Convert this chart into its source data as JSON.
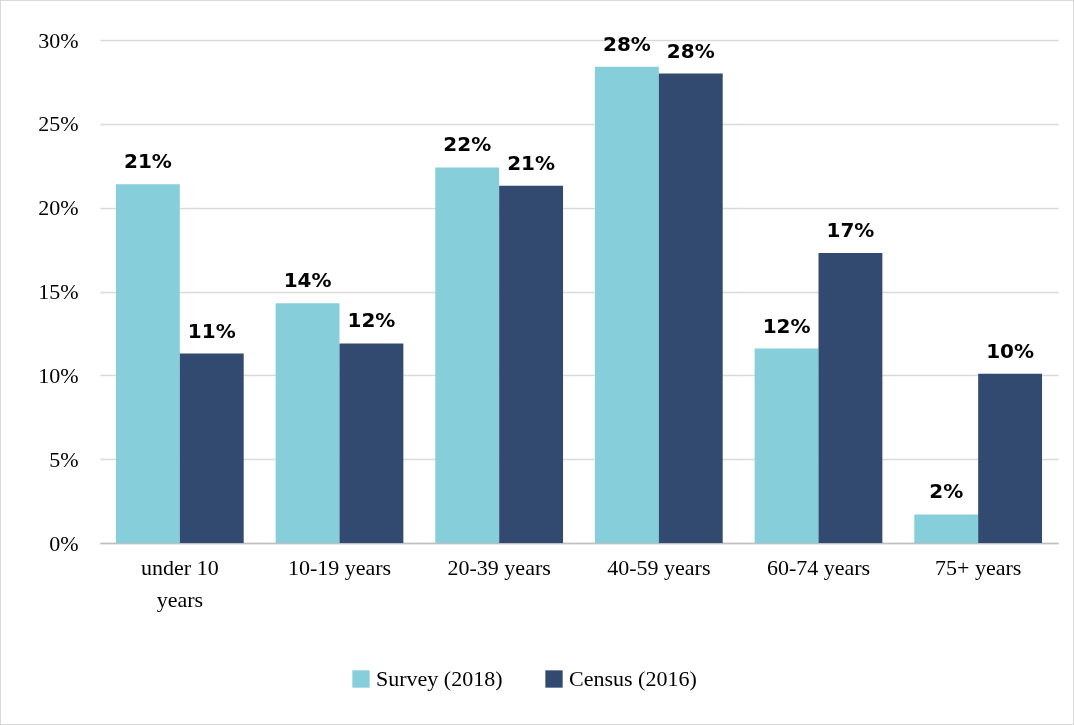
{
  "chart_data": {
    "type": "bar",
    "categories": [
      "under 10 years",
      "10-19 years",
      "20-39 years",
      "40-59 years",
      "60-74 years",
      "75+ years"
    ],
    "series": [
      {
        "name": "Survey (2018)",
        "color": "#87cedb",
        "values": [
          21.4,
          14.3,
          22.4,
          28.4,
          11.6,
          1.7
        ],
        "value_labels": [
          "21%",
          "14%",
          "22%",
          "28%",
          "12%",
          "2%"
        ]
      },
      {
        "name": "Census (2016)",
        "color": "#334a70",
        "values": [
          11.3,
          11.9,
          21.3,
          28.0,
          17.3,
          10.1
        ],
        "value_labels": [
          "11%",
          "12%",
          "21%",
          "28%",
          "17%",
          "10%"
        ]
      }
    ],
    "ylim": [
      0,
      30
    ],
    "yticks": [
      {
        "value": 0,
        "label": "0%"
      },
      {
        "value": 5,
        "label": "5%"
      },
      {
        "value": 10,
        "label": "10%"
      },
      {
        "value": 15,
        "label": "15%"
      },
      {
        "value": 20,
        "label": "20%"
      },
      {
        "value": 25,
        "label": "25%"
      },
      {
        "value": 30,
        "label": "30%"
      }
    ],
    "grid": "y",
    "legend": "bottom"
  }
}
